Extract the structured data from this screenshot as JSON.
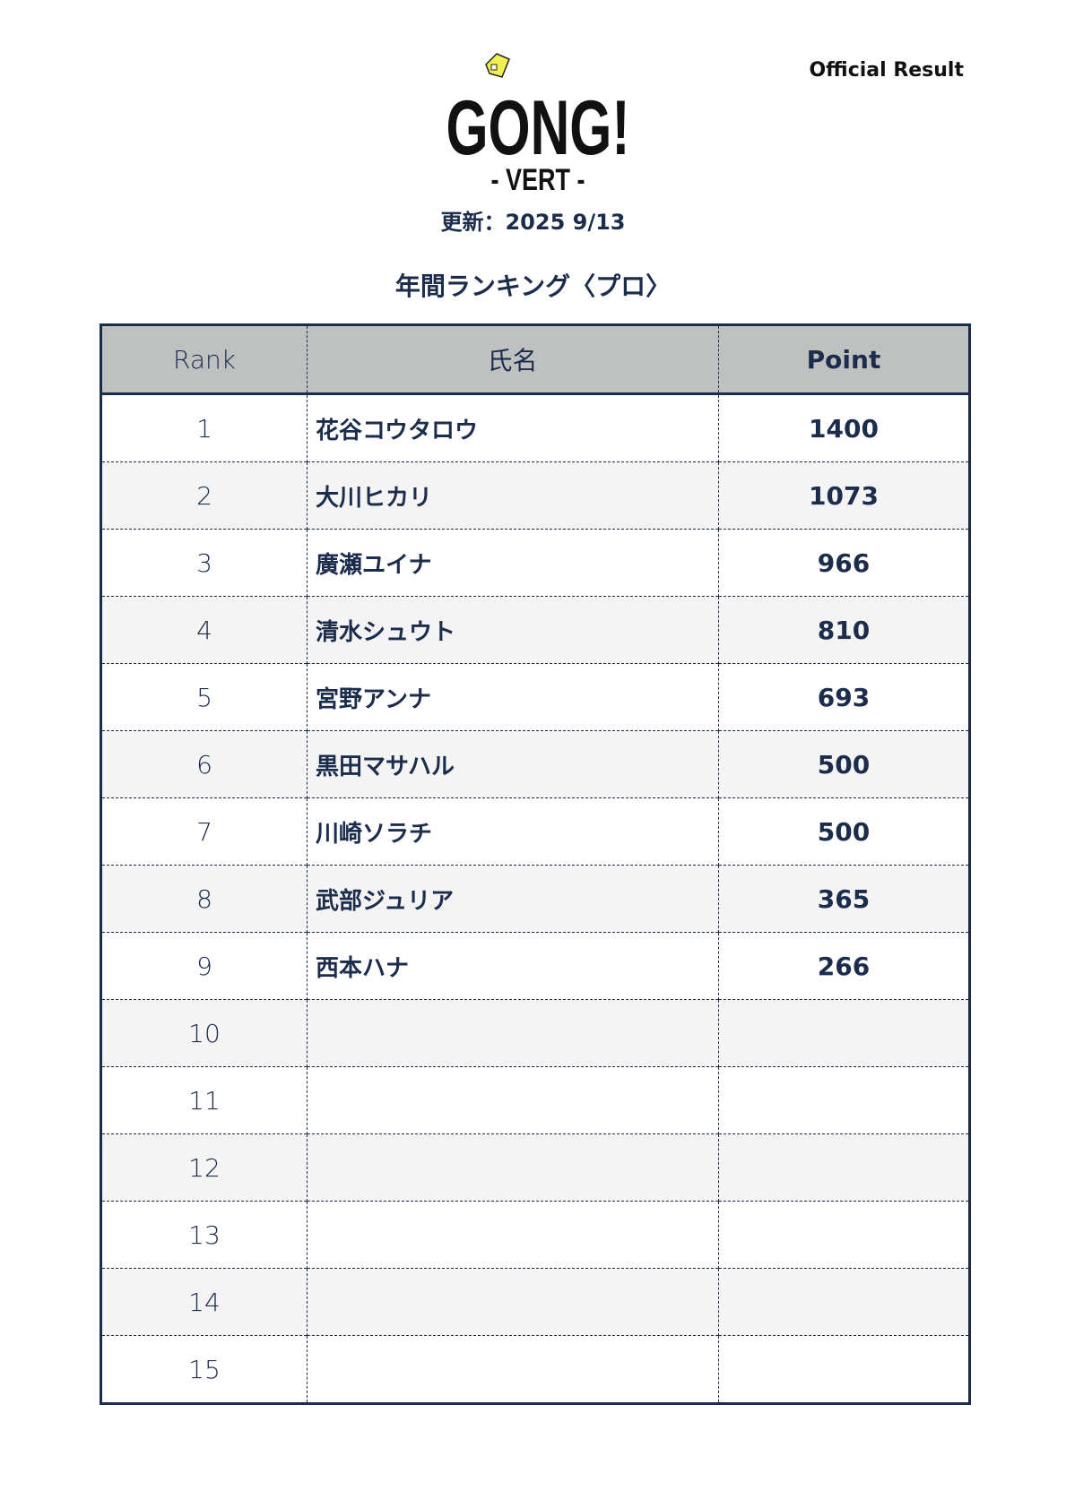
{
  "header": {
    "official_label": "Official Result",
    "logo_text": "GONG!",
    "logo_sub": "- VERT -",
    "updated": "更新：2025 9/13",
    "title": "年間ランキング〈プロ〉"
  },
  "table": {
    "columns": [
      "Rank",
      "氏名",
      "Point"
    ],
    "rows": [
      {
        "rank": "1",
        "name": "花谷コウタロウ",
        "point": "1400"
      },
      {
        "rank": "2",
        "name": "大川ヒカリ",
        "point": "1073"
      },
      {
        "rank": "3",
        "name": "廣瀬ユイナ",
        "point": "966"
      },
      {
        "rank": "4",
        "name": "清水シュウト",
        "point": "810"
      },
      {
        "rank": "5",
        "name": "宮野アンナ",
        "point": "693"
      },
      {
        "rank": "6",
        "name": "黒田マサハル",
        "point": "500"
      },
      {
        "rank": "7",
        "name": "川崎ソラチ",
        "point": "500"
      },
      {
        "rank": "8",
        "name": "武部ジュリア",
        "point": "365"
      },
      {
        "rank": "9",
        "name": "西本ハナ",
        "point": "266"
      },
      {
        "rank": "10",
        "name": "",
        "point": ""
      },
      {
        "rank": "11",
        "name": "",
        "point": ""
      },
      {
        "rank": "12",
        "name": "",
        "point": ""
      },
      {
        "rank": "13",
        "name": "",
        "point": ""
      },
      {
        "rank": "14",
        "name": "",
        "point": ""
      },
      {
        "rank": "15",
        "name": "",
        "point": ""
      }
    ]
  },
  "colors": {
    "text": "#1c2c4c",
    "header_bg": "#bfc0c0",
    "stripe": "#f4f4f4",
    "logo_accent": "#f0f050"
  }
}
